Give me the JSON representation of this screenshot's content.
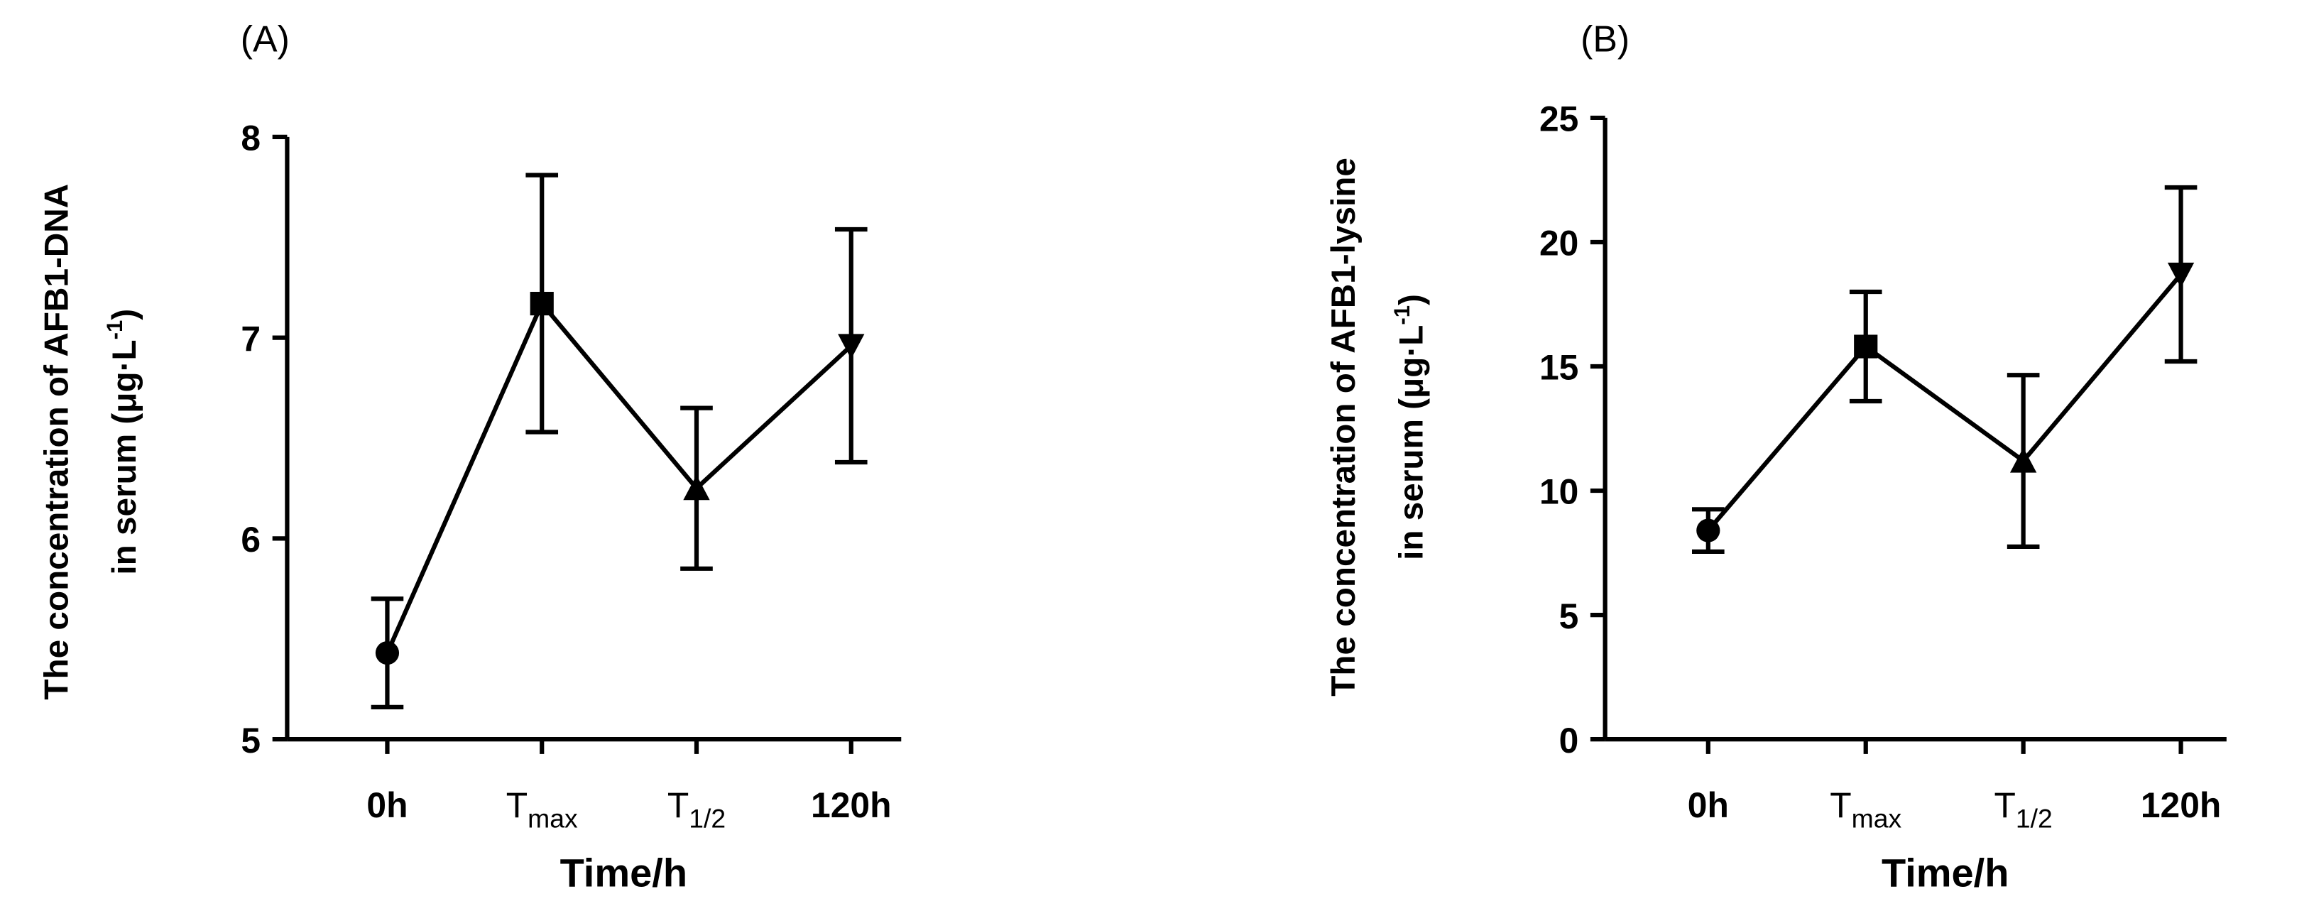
{
  "chart_data": [
    {
      "type": "line",
      "panel_label": "(A)",
      "ylabel": [
        "The concentration of AFB1-DNA",
        [
          "in serum (μg·L",
          "-1",
          ")"
        ]
      ],
      "xlabel": "Time/h",
      "categories": [
        "0h",
        [
          "T",
          "max"
        ],
        [
          "T",
          "1/2"
        ],
        "120h"
      ],
      "markers": [
        "circle",
        "square",
        "triangle",
        "triangle-down"
      ],
      "series": [
        {
          "color": "#000000",
          "values": [
            5.43,
            7.17,
            6.25,
            6.96
          ],
          "errors": [
            0.27,
            0.64,
            0.4,
            0.58
          ]
        }
      ],
      "ylim": [
        5,
        8
      ],
      "yticks": [
        5,
        6,
        7,
        8
      ]
    },
    {
      "type": "line",
      "panel_label": "(B)",
      "ylabel": [
        "The concentration of AFB1-lysine",
        [
          "in serum (μg·L",
          "-1",
          ")"
        ]
      ],
      "xlabel": "Time/h",
      "categories": [
        "0h",
        [
          "T",
          "max"
        ],
        [
          "T",
          "1/2"
        ],
        "120h"
      ],
      "markers": [
        "circle",
        "square",
        "triangle",
        "triangle-down"
      ],
      "series": [
        {
          "color": "#000000",
          "values": [
            8.4,
            15.8,
            11.2,
            18.7
          ],
          "errors": [
            0.85,
            2.2,
            3.45,
            3.5
          ]
        }
      ],
      "ylim": [
        0,
        25
      ],
      "yticks": [
        0,
        5,
        10,
        15,
        20,
        25
      ]
    }
  ]
}
